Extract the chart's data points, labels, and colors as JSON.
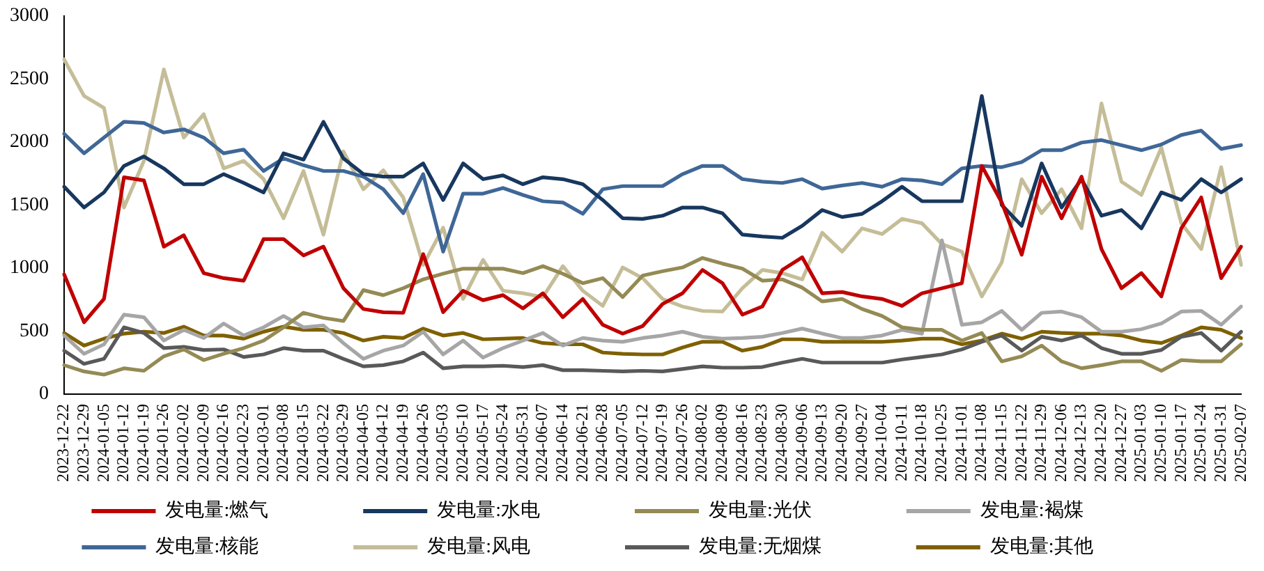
{
  "chart_data": {
    "type": "line",
    "categories": [
      "2023-12-22",
      "2023-12-29",
      "2024-01-05",
      "2024-01-12",
      "2024-01-19",
      "2024-01-26",
      "2024-02-02",
      "2024-02-09",
      "2024-02-16",
      "2024-02-23",
      "2024-03-01",
      "2024-03-08",
      "2024-03-15",
      "2024-03-22",
      "2024-03-29",
      "2024-04-05",
      "2024-04-12",
      "2024-04-19",
      "2024-04-26",
      "2024-05-03",
      "2024-05-10",
      "2024-05-17",
      "2024-05-24",
      "2024-05-31",
      "2024-06-07",
      "2024-06-14",
      "2024-06-21",
      "2024-06-28",
      "2024-07-05",
      "2024-07-12",
      "2024-07-19",
      "2024-07-26",
      "2024-08-02",
      "2024-08-09",
      "2024-08-16",
      "2024-08-23",
      "2024-08-30",
      "2024-09-06",
      "2024-09-13",
      "2024-09-20",
      "2024-09-27",
      "2024-10-04",
      "2024-10-11",
      "2024-10-18",
      "2024-10-25",
      "2024-11-01",
      "2024-11-08",
      "2024-11-15",
      "2024-11-22",
      "2024-11-29",
      "2024-12-06",
      "2024-12-13",
      "2024-12-20",
      "2024-12-27",
      "2025-01-03",
      "2025-01-10",
      "2025-01-17",
      "2025-01-24",
      "2025-01-31",
      "2025-02-07"
    ],
    "series": [
      {
        "name": "发电量:燃气",
        "color": "#c00000",
        "values": [
          950,
          570,
          755,
          1720,
          1695,
          1170,
          1260,
          960,
          920,
          900,
          1230,
          1230,
          1100,
          1170,
          840,
          675,
          650,
          645,
          1110,
          650,
          820,
          745,
          785,
          680,
          800,
          610,
          755,
          550,
          480,
          540,
          715,
          800,
          985,
          880,
          630,
          695,
          985,
          1085,
          800,
          810,
          775,
          755,
          700,
          800,
          840,
          880,
          1810,
          1520,
          1105,
          1725,
          1395,
          1725,
          1150,
          840,
          960,
          775,
          1315,
          1560,
          920,
          1170
        ]
      },
      {
        "name": "发电量:水电",
        "color": "#17375e",
        "values": [
          1645,
          1480,
          1600,
          1810,
          1885,
          1790,
          1665,
          1665,
          1745,
          1675,
          1600,
          1910,
          1860,
          2160,
          1870,
          1745,
          1725,
          1725,
          1830,
          1540,
          1830,
          1705,
          1735,
          1665,
          1720,
          1705,
          1665,
          1540,
          1395,
          1390,
          1415,
          1480,
          1480,
          1435,
          1265,
          1250,
          1240,
          1335,
          1460,
          1405,
          1430,
          1530,
          1645,
          1530,
          1530,
          1530,
          2365,
          1500,
          1335,
          1830,
          1480,
          1705,
          1415,
          1460,
          1315,
          1600,
          1540,
          1705,
          1600,
          1705
        ]
      },
      {
        "name": "发电量:光伏",
        "color": "#948a54",
        "values": [
          230,
          180,
          155,
          205,
          185,
          300,
          355,
          270,
          320,
          365,
          425,
          530,
          645,
          605,
          580,
          825,
          785,
          840,
          910,
          955,
          995,
          995,
          995,
          960,
          1015,
          955,
          880,
          920,
          770,
          940,
          975,
          1005,
          1080,
          1035,
          995,
          900,
          910,
          845,
          735,
          755,
          675,
          620,
          530,
          510,
          510,
          425,
          485,
          260,
          300,
          385,
          260,
          205,
          230,
          260,
          260,
          185,
          270,
          260,
          260,
          395
        ]
      },
      {
        "name": "发电量:褐煤",
        "color": "#a6a6a6",
        "values": [
          465,
          320,
          395,
          630,
          610,
          425,
          510,
          445,
          560,
          465,
          530,
          620,
          530,
          545,
          405,
          280,
          345,
          385,
          495,
          315,
          425,
          290,
          365,
          425,
          485,
          385,
          445,
          425,
          415,
          445,
          465,
          495,
          455,
          440,
          445,
          455,
          485,
          520,
          480,
          445,
          445,
          465,
          510,
          480,
          1220,
          550,
          570,
          660,
          510,
          645,
          655,
          610,
          495,
          495,
          515,
          560,
          655,
          660,
          550,
          695
        ]
      },
      {
        "name": "发电量:核能",
        "color": "#3f6797",
        "values": [
          2065,
          1910,
          2035,
          2160,
          2150,
          2075,
          2100,
          2035,
          1910,
          1940,
          1770,
          1870,
          1815,
          1770,
          1770,
          1725,
          1625,
          1435,
          1745,
          1130,
          1590,
          1590,
          1635,
          1580,
          1530,
          1520,
          1430,
          1625,
          1650,
          1650,
          1650,
          1745,
          1810,
          1810,
          1705,
          1685,
          1675,
          1705,
          1630,
          1655,
          1675,
          1645,
          1705,
          1695,
          1665,
          1790,
          1810,
          1800,
          1840,
          1935,
          1935,
          1995,
          2015,
          1975,
          1935,
          1980,
          2055,
          2090,
          1945,
          1975
        ]
      },
      {
        "name": "发电量:风电",
        "color": "#c4bd97",
        "values": [
          2655,
          2365,
          2270,
          1480,
          1850,
          2575,
          2035,
          2220,
          1790,
          1850,
          1705,
          1395,
          1770,
          1265,
          1925,
          1625,
          1775,
          1560,
          1025,
          1320,
          755,
          1065,
          820,
          800,
          770,
          1015,
          820,
          700,
          1005,
          920,
          755,
          695,
          660,
          655,
          840,
          985,
          960,
          910,
          1280,
          1130,
          1315,
          1270,
          1390,
          1355,
          1190,
          1130,
          775,
          1045,
          1705,
          1435,
          1625,
          1315,
          2305,
          1685,
          1580,
          1955,
          1355,
          1150,
          1800,
          1025
        ]
      },
      {
        "name": "发电量:无烟煤",
        "color": "#595959",
        "values": [
          345,
          240,
          280,
          530,
          485,
          365,
          375,
          350,
          355,
          295,
          315,
          365,
          345,
          345,
          280,
          220,
          230,
          260,
          330,
          205,
          220,
          220,
          225,
          215,
          230,
          190,
          190,
          185,
          180,
          185,
          180,
          200,
          220,
          210,
          210,
          215,
          250,
          280,
          250,
          250,
          250,
          250,
          275,
          295,
          315,
          355,
          415,
          465,
          345,
          455,
          425,
          465,
          365,
          320,
          320,
          350,
          455,
          485,
          345,
          495
        ]
      },
      {
        "name": "发电量:其他",
        "color": "#7f6000",
        "values": [
          485,
          385,
          440,
          480,
          495,
          485,
          535,
          465,
          465,
          440,
          495,
          535,
          510,
          510,
          485,
          425,
          455,
          445,
          520,
          465,
          485,
          435,
          440,
          445,
          405,
          395,
          395,
          330,
          320,
          315,
          315,
          370,
          415,
          415,
          345,
          375,
          435,
          435,
          415,
          415,
          415,
          415,
          425,
          440,
          440,
          395,
          425,
          480,
          440,
          495,
          485,
          480,
          480,
          465,
          425,
          405,
          465,
          530,
          510,
          445
        ]
      }
    ],
    "ylim": [
      0,
      3000
    ],
    "yticks": [
      0,
      500,
      1000,
      1500,
      2000,
      2500,
      3000
    ],
    "grid": false,
    "legend": "bottom",
    "marker": "none",
    "line_style": "solid"
  }
}
